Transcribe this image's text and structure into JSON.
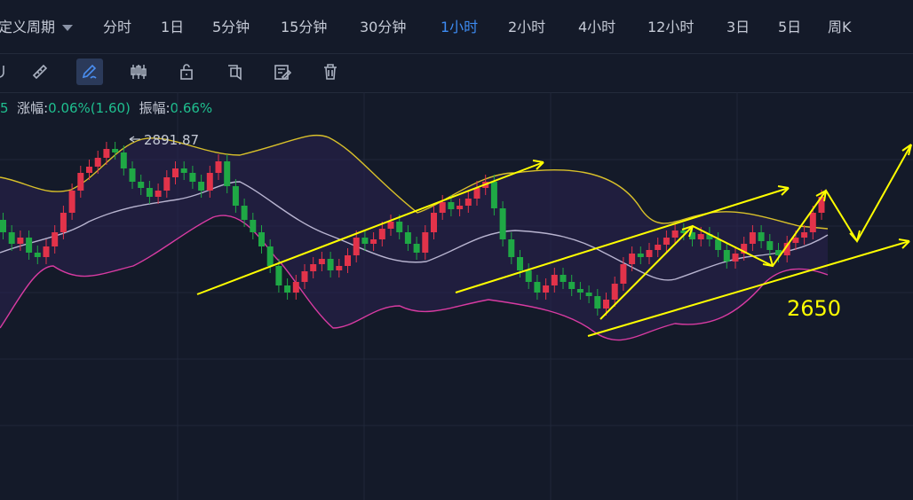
{
  "tabs": [
    {
      "label": "定义周期",
      "dropdown": true
    },
    {
      "label": "分时"
    },
    {
      "label": "1日"
    },
    {
      "label": "5分钟"
    },
    {
      "label": "15分钟"
    },
    {
      "label": "30分钟"
    },
    {
      "label": "1小时",
      "active": true
    },
    {
      "label": "2小时"
    },
    {
      "label": "4小时"
    },
    {
      "label": "12小时"
    },
    {
      "label": "3日"
    },
    {
      "label": "5日"
    },
    {
      "label": "周K"
    }
  ],
  "toolbar_icons": [
    "magnet-icon",
    "ruler-icon",
    "pencil-icon",
    "candlestick-icon",
    "lock-icon",
    "layers-icon",
    "edit-note-icon",
    "trash-icon"
  ],
  "stats": {
    "cut_prefix": "5",
    "change_label": "涨幅:",
    "change_value": "0.06%(1.60)",
    "amplitude_label": "振幅:",
    "amplitude_value": "0.66%"
  },
  "chart_annotations": {
    "high_marker": "2891.87",
    "target_label": "2650"
  },
  "colors": {
    "background": "#141a29",
    "bull": "#e2334a",
    "bear": "#1fa845",
    "upper_band": "#d8c02a",
    "middle_band": "#b8b4d0",
    "lower_band": "#d83ba2",
    "active_tab": "#3d8bf2",
    "drawing": "#ffff00"
  }
}
